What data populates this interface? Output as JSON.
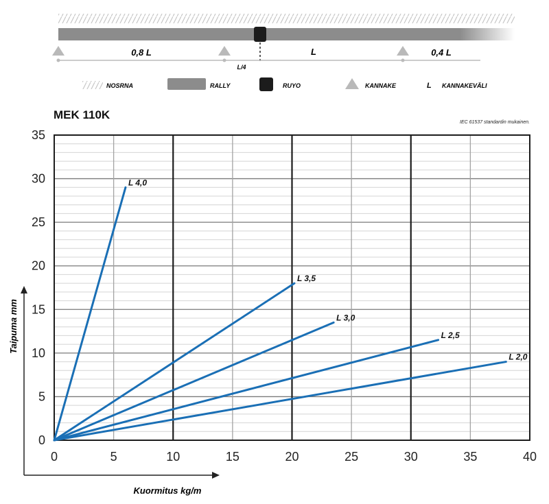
{
  "diagram": {
    "span_left": "0,8 L",
    "span_middle": "L",
    "span_right": "0,4 L",
    "span_mark": "L/4",
    "legend": [
      {
        "label": "NOSRNA",
        "key": "hatch"
      },
      {
        "label": "RALLY",
        "key": "cable"
      },
      {
        "label": "RUYO",
        "key": "block"
      },
      {
        "label": "KANNAKE",
        "key": "triangle"
      },
      {
        "label": "KANNAKEVÄLI",
        "key": "L",
        "symbol": "L"
      }
    ],
    "colors": {
      "cable": "#8c8c8c",
      "block": "#1c1c1c",
      "triangle": "#b9b9b9",
      "hatch": "#c8c8c8"
    }
  },
  "chart_data": {
    "type": "line",
    "title": "MEK 110K",
    "note": "IEC 61537 standardin mukainen.",
    "xlabel": "Kuormitus kg/m",
    "ylabel": "Taipuma mm",
    "xlim": [
      0,
      40
    ],
    "ylim": [
      0,
      35
    ],
    "xticks": [
      0,
      5,
      10,
      15,
      20,
      25,
      30,
      35,
      40
    ],
    "yticks": [
      0,
      5,
      10,
      15,
      20,
      25,
      30,
      35
    ],
    "grid": true,
    "line_color": "#1a6fb5",
    "series": [
      {
        "name": "L 4,0",
        "x": [
          0,
          6.0
        ],
        "y": [
          0,
          29.0
        ]
      },
      {
        "name": "L 3,5",
        "x": [
          0,
          20.2
        ],
        "y": [
          0,
          18.0
        ]
      },
      {
        "name": "L 3,0",
        "x": [
          0,
          23.5
        ],
        "y": [
          0,
          13.5
        ]
      },
      {
        "name": "L 2,5",
        "x": [
          0,
          32.3
        ],
        "y": [
          0,
          11.5
        ]
      },
      {
        "name": "L 2,0",
        "x": [
          0,
          38.0
        ],
        "y": [
          0,
          9.0
        ]
      }
    ]
  }
}
